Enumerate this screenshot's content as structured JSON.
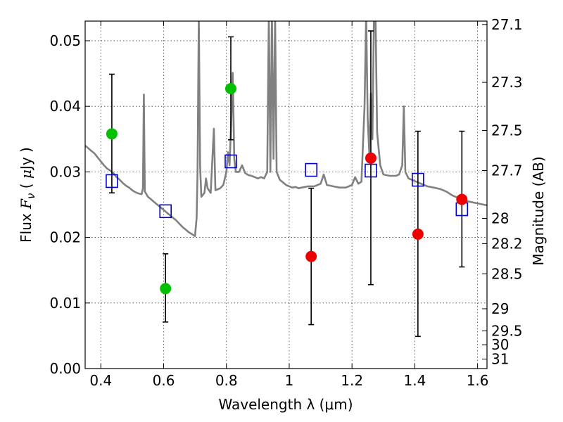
{
  "chart_data": {
    "type": "scatter",
    "xlabel": "Wavelength  λ (μm)",
    "ylabel_parts": [
      "Flux  ",
      "F",
      "ν",
      "  ( ",
      "μ",
      "Jy )"
    ],
    "y2label": "Magnitude (AB)",
    "xlim": [
      0.35,
      1.63
    ],
    "ylim": [
      0.0,
      0.053
    ],
    "grid": true,
    "x_ticks": [
      0.4,
      0.6,
      0.8,
      1.0,
      1.2,
      1.4,
      1.6
    ],
    "x_tick_labels": [
      "0.4",
      "0.6",
      "0.8",
      "1",
      "1.2",
      "1.4",
      "1.6"
    ],
    "y_ticks": [
      0.0,
      0.01,
      0.02,
      0.03,
      0.04,
      0.05
    ],
    "y_tick_labels": [
      "0.00",
      "0.01",
      "0.02",
      "0.03",
      "0.04",
      "0.05"
    ],
    "magnitude_ticks": [
      "27.1",
      "27.3",
      "27.5",
      "27.7",
      "28",
      "28.2",
      "28.5",
      "29",
      "29.5",
      "30",
      "31"
    ],
    "colors": {
      "spectrum": "#808080",
      "model_box": "#0000cc",
      "detection": "#00c000",
      "non_detection": "#ee0000",
      "error_bar": "#000000"
    },
    "series": [
      {
        "kind": "detection",
        "points": [
          {
            "x": 0.435,
            "y": 0.0358,
            "ylo": 0.0268,
            "yhi": 0.0449
          },
          {
            "x": 0.606,
            "y": 0.0122,
            "ylo": 0.0071,
            "yhi": 0.0175
          },
          {
            "x": 0.814,
            "y": 0.0427,
            "ylo": 0.0349,
            "yhi": 0.0506
          }
        ]
      },
      {
        "kind": "non_detection",
        "points": [
          {
            "x": 1.07,
            "y": 0.0171,
            "ylo": 0.0067,
            "yhi": 0.0275
          },
          {
            "x": 1.26,
            "y": 0.0321,
            "ylo": 0.0128,
            "yhi": 0.0515
          },
          {
            "x": 1.41,
            "y": 0.0205,
            "ylo": 0.0049,
            "yhi": 0.0362
          },
          {
            "x": 1.55,
            "y": 0.0258,
            "ylo": 0.0155,
            "yhi": 0.0362
          }
        ]
      },
      {
        "kind": "model_box",
        "points": [
          {
            "x": 0.435,
            "y": 0.0286
          },
          {
            "x": 0.606,
            "y": 0.024
          },
          {
            "x": 0.814,
            "y": 0.0316
          },
          {
            "x": 1.07,
            "y": 0.0303
          },
          {
            "x": 1.26,
            "y": 0.0302
          },
          {
            "x": 1.41,
            "y": 0.0288
          },
          {
            "x": 1.55,
            "y": 0.0243
          }
        ]
      }
    ],
    "spectrum": [
      [
        0.35,
        0.034
      ],
      [
        0.36,
        0.0336
      ],
      [
        0.37,
        0.0332
      ],
      [
        0.38,
        0.0328
      ],
      [
        0.39,
        0.0322
      ],
      [
        0.4,
        0.0316
      ],
      [
        0.41,
        0.031
      ],
      [
        0.42,
        0.0305
      ],
      [
        0.43,
        0.0302
      ],
      [
        0.44,
        0.0298
      ],
      [
        0.45,
        0.0292
      ],
      [
        0.46,
        0.0288
      ],
      [
        0.47,
        0.0283
      ],
      [
        0.48,
        0.0279
      ],
      [
        0.49,
        0.0276
      ],
      [
        0.5,
        0.0272
      ],
      [
        0.51,
        0.0269
      ],
      [
        0.52,
        0.0267
      ],
      [
        0.53,
        0.0266
      ],
      [
        0.534,
        0.0275
      ],
      [
        0.537,
        0.0418
      ],
      [
        0.54,
        0.027
      ],
      [
        0.55,
        0.0262
      ],
      [
        0.56,
        0.0258
      ],
      [
        0.57,
        0.0254
      ],
      [
        0.58,
        0.025
      ],
      [
        0.59,
        0.0246
      ],
      [
        0.6,
        0.0242
      ],
      [
        0.61,
        0.0238
      ],
      [
        0.62,
        0.0234
      ],
      [
        0.63,
        0.023
      ],
      [
        0.64,
        0.0226
      ],
      [
        0.65,
        0.0221
      ],
      [
        0.66,
        0.0216
      ],
      [
        0.67,
        0.0212
      ],
      [
        0.68,
        0.0208
      ],
      [
        0.69,
        0.0205
      ],
      [
        0.7,
        0.0202
      ],
      [
        0.705,
        0.023
      ],
      [
        0.708,
        0.03
      ],
      [
        0.712,
        0.054
      ],
      [
        0.716,
        0.031
      ],
      [
        0.72,
        0.0262
      ],
      [
        0.73,
        0.0268
      ],
      [
        0.735,
        0.029
      ],
      [
        0.74,
        0.0275
      ],
      [
        0.75,
        0.0268
      ],
      [
        0.76,
        0.0366
      ],
      [
        0.765,
        0.0272
      ],
      [
        0.78,
        0.0275
      ],
      [
        0.79,
        0.028
      ],
      [
        0.8,
        0.03
      ],
      [
        0.805,
        0.033
      ],
      [
        0.81,
        0.031
      ],
      [
        0.815,
        0.0372
      ],
      [
        0.82,
        0.0451
      ],
      [
        0.825,
        0.032
      ],
      [
        0.83,
        0.03
      ],
      [
        0.84,
        0.03
      ],
      [
        0.85,
        0.031
      ],
      [
        0.86,
        0.0298
      ],
      [
        0.87,
        0.0295
      ],
      [
        0.88,
        0.0294
      ],
      [
        0.89,
        0.0292
      ],
      [
        0.9,
        0.029
      ],
      [
        0.91,
        0.0292
      ],
      [
        0.92,
        0.029
      ],
      [
        0.93,
        0.03
      ],
      [
        0.935,
        0.054
      ],
      [
        0.94,
        0.03
      ],
      [
        0.945,
        0.054
      ],
      [
        0.95,
        0.032
      ],
      [
        0.955,
        0.054
      ],
      [
        0.96,
        0.03
      ],
      [
        0.97,
        0.0288
      ],
      [
        0.98,
        0.0284
      ],
      [
        0.99,
        0.028
      ],
      [
        1.0,
        0.0278
      ],
      [
        1.01,
        0.0276
      ],
      [
        1.02,
        0.0277
      ],
      [
        1.03,
        0.0275
      ],
      [
        1.04,
        0.0276
      ],
      [
        1.05,
        0.0277
      ],
      [
        1.06,
        0.0278
      ],
      [
        1.08,
        0.0278
      ],
      [
        1.1,
        0.0282
      ],
      [
        1.11,
        0.0296
      ],
      [
        1.12,
        0.028
      ],
      [
        1.14,
        0.0278
      ],
      [
        1.16,
        0.0276
      ],
      [
        1.18,
        0.0276
      ],
      [
        1.2,
        0.028
      ],
      [
        1.21,
        0.0292
      ],
      [
        1.22,
        0.0282
      ],
      [
        1.23,
        0.0285
      ],
      [
        1.24,
        0.04
      ],
      [
        1.245,
        0.054
      ],
      [
        1.25,
        0.038
      ],
      [
        1.255,
        0.033
      ],
      [
        1.26,
        0.042
      ],
      [
        1.265,
        0.035
      ],
      [
        1.27,
        0.054
      ],
      [
        1.275,
        0.054
      ],
      [
        1.28,
        0.036
      ],
      [
        1.29,
        0.031
      ],
      [
        1.3,
        0.0296
      ],
      [
        1.32,
        0.0294
      ],
      [
        1.34,
        0.0294
      ],
      [
        1.35,
        0.0296
      ],
      [
        1.36,
        0.031
      ],
      [
        1.365,
        0.04
      ],
      [
        1.37,
        0.03
      ],
      [
        1.38,
        0.029
      ],
      [
        1.4,
        0.0286
      ],
      [
        1.42,
        0.0282
      ],
      [
        1.44,
        0.0278
      ],
      [
        1.46,
        0.0276
      ],
      [
        1.48,
        0.0274
      ],
      [
        1.5,
        0.027
      ],
      [
        1.52,
        0.0264
      ],
      [
        1.54,
        0.026
      ],
      [
        1.56,
        0.0256
      ],
      [
        1.58,
        0.0254
      ],
      [
        1.6,
        0.0252
      ],
      [
        1.62,
        0.025
      ],
      [
        1.63,
        0.0249
      ]
    ]
  }
}
